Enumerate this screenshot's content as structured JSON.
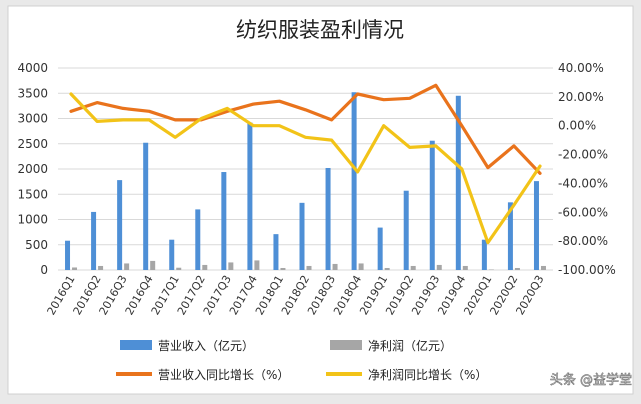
{
  "chart_data": {
    "type": "bar",
    "title": "纺织服装盈利情况",
    "categories": [
      "2016Q1",
      "2016Q2",
      "2016Q3",
      "2016Q4",
      "2017Q1",
      "2017Q2",
      "2017Q3",
      "2017Q4",
      "2018Q1",
      "2018Q2",
      "2018Q3",
      "2018Q4",
      "2019Q1",
      "2019Q2",
      "2019Q3",
      "2019Q4",
      "2020Q1",
      "2020Q2",
      "2020Q3"
    ],
    "y_left": {
      "ylim": [
        0,
        4000
      ],
      "ticks": [
        "0",
        "500",
        "1000",
        "1500",
        "2000",
        "2500",
        "3000",
        "3500",
        "4000"
      ]
    },
    "y_right": {
      "ylim": [
        -100,
        40
      ],
      "ticks": [
        "-100.00%",
        "-80.00%",
        "-60.00%",
        "-40.00%",
        "-20.00%",
        "0.00%",
        "20.00%",
        "40.00%"
      ]
    },
    "series": [
      {
        "name": "营业收入（亿元）",
        "kind": "bar",
        "axis": "left",
        "color": "#4e8fd6",
        "values": [
          580,
          1150,
          1780,
          2520,
          600,
          1200,
          1940,
          2920,
          710,
          1330,
          2020,
          3520,
          840,
          1570,
          2560,
          3450,
          600,
          1340,
          1760
        ]
      },
      {
        "name": "净利润（亿元）",
        "kind": "bar",
        "axis": "left",
        "color": "#a6a6a6",
        "values": [
          50,
          80,
          130,
          180,
          45,
          100,
          150,
          190,
          40,
          80,
          120,
          130,
          40,
          80,
          100,
          80,
          10,
          40,
          80
        ]
      },
      {
        "name": "营业收入同比增长（%）",
        "kind": "line",
        "axis": "right",
        "color": "#e9731c",
        "values": [
          10,
          16,
          12,
          10,
          4,
          4,
          10,
          15,
          17,
          11,
          4,
          22,
          18,
          19,
          28,
          0,
          -29,
          -14,
          -33
        ]
      },
      {
        "name": "净利润同比增长（%）",
        "kind": "line",
        "axis": "right",
        "color": "#f2c318",
        "values": [
          22,
          3,
          4,
          4,
          -8,
          5,
          12,
          0,
          0,
          -8,
          -10,
          -32,
          0,
          -15,
          -14,
          -30,
          -81,
          -55,
          -28
        ]
      }
    ],
    "legend_position": "bottom",
    "grid": true
  },
  "watermark": "头条 @益学堂"
}
